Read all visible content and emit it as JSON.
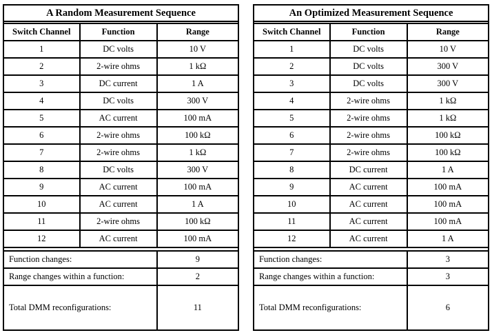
{
  "colors": {
    "border": "#000000",
    "background": "#ffffff",
    "text": "#000000"
  },
  "tables": [
    {
      "title": "A Random Measurement Sequence",
      "headers": [
        "Switch Channel",
        "Function",
        "Range"
      ],
      "rows": [
        [
          "1",
          "DC volts",
          "10 V"
        ],
        [
          "2",
          "2-wire ohms",
          "1 kΩ"
        ],
        [
          "3",
          "DC current",
          "1 A"
        ],
        [
          "4",
          "DC volts",
          "300 V"
        ],
        [
          "5",
          "AC current",
          "100 mA"
        ],
        [
          "6",
          "2-wire ohms",
          "100 kΩ"
        ],
        [
          "7",
          "2-wire ohms",
          "1 kΩ"
        ],
        [
          "8",
          "DC volts",
          "300 V"
        ],
        [
          "9",
          "AC current",
          "100 mA"
        ],
        [
          "10",
          "AC current",
          "1 A"
        ],
        [
          "11",
          "2-wire ohms",
          "100 kΩ"
        ],
        [
          "12",
          "AC current",
          "100 mA"
        ]
      ],
      "summary": [
        {
          "label": "Function changes:",
          "value": "9"
        },
        {
          "label": "Range changes within a function:",
          "value": "2"
        },
        {
          "label": "Total DMM reconfigurations:",
          "value": "11"
        }
      ]
    },
    {
      "title": "An Optimized Measurement Sequence",
      "headers": [
        "Switch Channel",
        "Function",
        "Range"
      ],
      "rows": [
        [
          "1",
          "DC volts",
          "10 V"
        ],
        [
          "2",
          "DC volts",
          "300 V"
        ],
        [
          "3",
          "DC volts",
          "300 V"
        ],
        [
          "4",
          "2-wire ohms",
          "1 kΩ"
        ],
        [
          "5",
          "2-wire ohms",
          "1 kΩ"
        ],
        [
          "6",
          "2-wire ohms",
          "100 kΩ"
        ],
        [
          "7",
          "2-wire ohms",
          "100 kΩ"
        ],
        [
          "8",
          "DC current",
          "1 A"
        ],
        [
          "9",
          "AC current",
          "100 mA"
        ],
        [
          "10",
          "AC current",
          "100 mA"
        ],
        [
          "11",
          "AC current",
          "100 mA"
        ],
        [
          "12",
          "AC current",
          "1 A"
        ]
      ],
      "summary": [
        {
          "label": "Function changes:",
          "value": "3"
        },
        {
          "label": "Range changes within a function:",
          "value": "3"
        },
        {
          "label": "Total DMM reconfigurations:",
          "value": "6"
        }
      ]
    }
  ]
}
